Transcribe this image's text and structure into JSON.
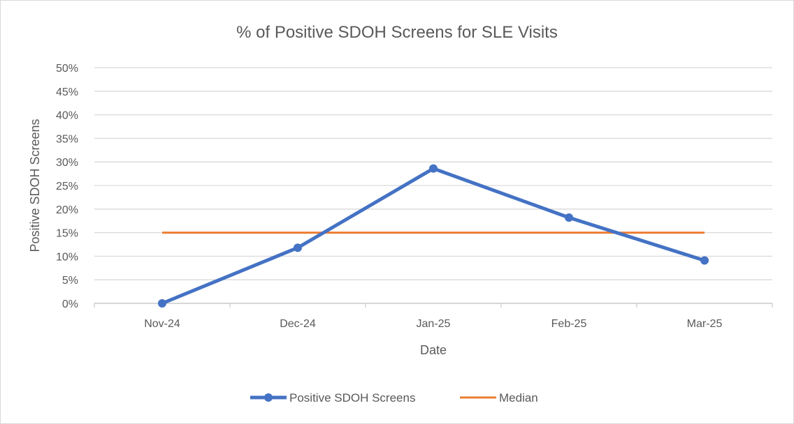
{
  "chart_data": {
    "type": "line",
    "title": "% of Positive SDOH Screens for SLE Visits",
    "xlabel": "Date",
    "ylabel": "Positive SDOH Screens",
    "categories": [
      "Nov-24",
      "Dec-24",
      "Jan-25",
      "Feb-25",
      "Mar-25"
    ],
    "yticks": [
      "0%",
      "5%",
      "10%",
      "15%",
      "20%",
      "25%",
      "30%",
      "35%",
      "40%",
      "45%",
      "50%"
    ],
    "ylim": [
      0,
      50
    ],
    "grid": true,
    "legend_position": "bottom",
    "series": [
      {
        "name": "Positive SDOH Screens",
        "values": [
          0,
          11.8,
          28.6,
          18.2,
          9.1
        ],
        "color": "#4472c4",
        "markers": true
      },
      {
        "name": "Median",
        "values": [
          15,
          15,
          15,
          15,
          15
        ],
        "color": "#ed7d31",
        "markers": false
      }
    ]
  }
}
